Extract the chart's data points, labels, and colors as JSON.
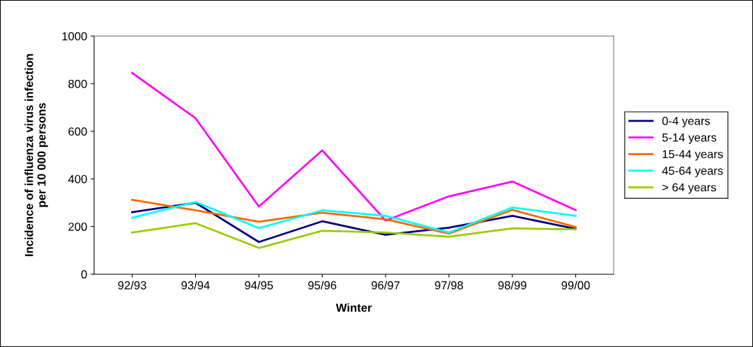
{
  "chart_data": {
    "type": "line",
    "xlabel": "Winter",
    "ylabel": "Incidence of influenza virus infection\nper 10 000 persons",
    "categories": [
      "92/93",
      "93/94",
      "94/95",
      "95/96",
      "96/97",
      "97/98",
      "98/99",
      "99/00"
    ],
    "ylim": [
      0,
      1000
    ],
    "yticks": [
      0,
      200,
      400,
      600,
      800,
      1000
    ],
    "grid": false,
    "legend": "right",
    "marker": "none",
    "line_style": "solid",
    "series": [
      {
        "name": "0-4 years",
        "color": "#000080",
        "values": [
          260,
          300,
          135,
          222,
          165,
          195,
          245,
          190
        ]
      },
      {
        "name": "5-14 years",
        "color": "#ff00ff",
        "values": [
          845,
          655,
          284,
          520,
          225,
          327,
          389,
          269
        ]
      },
      {
        "name": "15-44 years",
        "color": "#ff6600",
        "values": [
          312,
          268,
          220,
          258,
          230,
          170,
          270,
          198
        ]
      },
      {
        "name": "45-64 years",
        "color": "#00ffff",
        "values": [
          237,
          303,
          193,
          268,
          245,
          175,
          280,
          245
        ]
      },
      {
        "name": "> 64 years",
        "color": "#99cc00",
        "values": [
          175,
          214,
          110,
          182,
          175,
          157,
          192,
          188
        ]
      }
    ]
  }
}
